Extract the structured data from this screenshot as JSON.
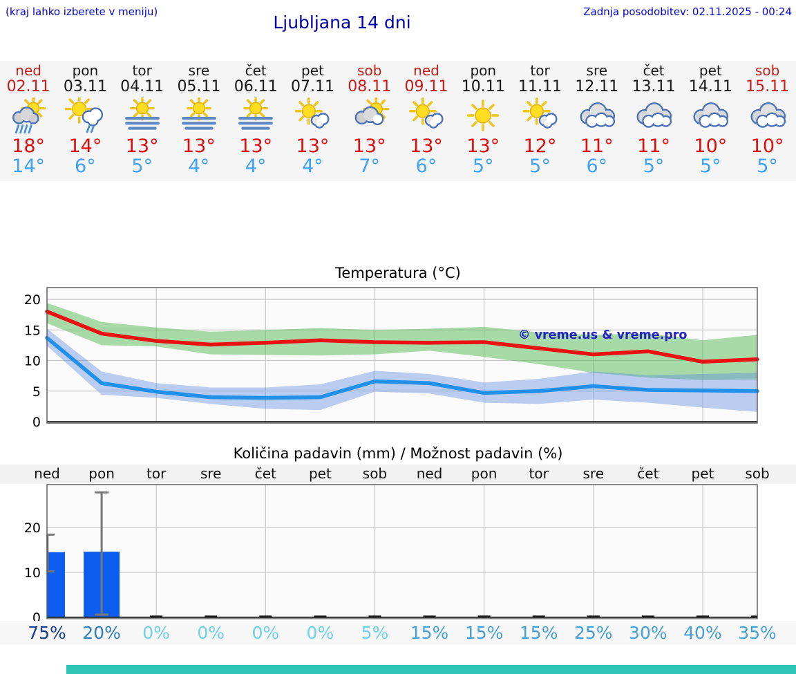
{
  "header": {
    "note": "(kraj lahko izberete v meniju)",
    "title": "Ljubljana 14 dni",
    "updated": "Zadnja posodobitev: 02.11.2025 - 00:24"
  },
  "colors": {
    "header_blue": "#0000dd",
    "title_blue": "#0000aa",
    "weekend_red": "#cc1a1a",
    "high_temp_red": "#e00d0d",
    "low_temp_blue": "#3fa2fc",
    "strip_gray": "#f5f5f5",
    "footer_teal": "#2ec4b6"
  },
  "forecast_days": [
    {
      "day": "ned",
      "date": "02.11",
      "weekend": true,
      "icon": "sun-rain",
      "high": "18°",
      "low": "14°"
    },
    {
      "day": "pon",
      "date": "03.11",
      "weekend": false,
      "icon": "sun-shower",
      "high": "14°",
      "low": "6°"
    },
    {
      "day": "tor",
      "date": "04.11",
      "weekend": false,
      "icon": "fog",
      "high": "13°",
      "low": "5°"
    },
    {
      "day": "sre",
      "date": "05.11",
      "weekend": false,
      "icon": "fog",
      "high": "13°",
      "low": "4°"
    },
    {
      "day": "čet",
      "date": "06.11",
      "weekend": false,
      "icon": "fog",
      "high": "13°",
      "low": "4°"
    },
    {
      "day": "pet",
      "date": "07.11",
      "weekend": false,
      "icon": "sun-cloud",
      "high": "13°",
      "low": "4°"
    },
    {
      "day": "sob",
      "date": "08.11",
      "weekend": true,
      "icon": "cloud-sun",
      "high": "13°",
      "low": "7°"
    },
    {
      "day": "ned",
      "date": "09.11",
      "weekend": true,
      "icon": "sun-cloud",
      "high": "13°",
      "low": "6°"
    },
    {
      "day": "pon",
      "date": "10.11",
      "weekend": false,
      "icon": "sun",
      "high": "13°",
      "low": "5°"
    },
    {
      "day": "tor",
      "date": "11.11",
      "weekend": false,
      "icon": "sun-cloud",
      "high": "12°",
      "low": "5°"
    },
    {
      "day": "sre",
      "date": "12.11",
      "weekend": false,
      "icon": "cloudy",
      "high": "11°",
      "low": "6°"
    },
    {
      "day": "čet",
      "date": "13.11",
      "weekend": false,
      "icon": "cloudy",
      "high": "11°",
      "low": "5°"
    },
    {
      "day": "pet",
      "date": "14.11",
      "weekend": false,
      "icon": "cloudy",
      "high": "10°",
      "low": "5°"
    },
    {
      "day": "sob",
      "date": "15.11",
      "weekend": true,
      "icon": "cloudy",
      "high": "10°",
      "low": "5°"
    }
  ],
  "chart_data": [
    {
      "type": "line",
      "title": "Temperatura (°C)",
      "categories": [
        "02.11",
        "03.11",
        "04.11",
        "05.11",
        "06.11",
        "07.11",
        "08.11",
        "09.11",
        "10.11",
        "11.11",
        "12.11",
        "13.11",
        "14.11",
        "15.11"
      ],
      "series": [
        {
          "name": "max temperatura",
          "color": "#e81212",
          "values": [
            18,
            14.4,
            13.2,
            12.6,
            12.9,
            13.3,
            13,
            12.9,
            13,
            12,
            11,
            11.5,
            9.8,
            10.2
          ]
        },
        {
          "name": "min temperatura",
          "color": "#2090e8",
          "values": [
            13.7,
            6.3,
            4.9,
            4,
            3.9,
            4,
            6.6,
            6.3,
            4.7,
            5,
            5.8,
            5.2,
            5.1,
            5
          ]
        }
      ],
      "bands": [
        {
          "name": "max razpon",
          "color": "rgba(85,185,85,0.5)",
          "upper": [
            19.4,
            16.3,
            15.4,
            14.7,
            15,
            15.3,
            15,
            15.2,
            15.5,
            14.6,
            14.2,
            14.4,
            13.3,
            14.2
          ],
          "lower": [
            16.1,
            12.5,
            12.3,
            11,
            10.9,
            10.8,
            11,
            11.6,
            10.6,
            9.4,
            8,
            7.2,
            6.8,
            6.9
          ]
        },
        {
          "name": "min razpon",
          "color": "rgba(95,140,225,0.42)",
          "upper": [
            15.2,
            8.2,
            6.3,
            5.6,
            5.6,
            6.1,
            8.3,
            7.8,
            6.4,
            7,
            8.2,
            7.6,
            7.8,
            8
          ],
          "lower": [
            12.4,
            4.4,
            3.9,
            2.9,
            2.1,
            1.9,
            4.9,
            4.6,
            3.1,
            2.9,
            3.6,
            3.1,
            2.3,
            1.6
          ]
        }
      ],
      "ylim": [
        0,
        21.8
      ],
      "yticks": [
        0,
        5,
        10,
        15,
        20
      ],
      "grid": true,
      "legend_position": "none",
      "annotation": "© vreme.us & vreme.pro",
      "annotation_color": "#2424c0"
    },
    {
      "type": "bar",
      "title": "Količina padavin (mm) / Možnost padavin (%)",
      "categories": [
        "ned",
        "pon",
        "tor",
        "sre",
        "čet",
        "pet",
        "sob",
        "ned",
        "pon",
        "tor",
        "sre",
        "čet",
        "pet",
        "sob"
      ],
      "values": [
        14.5,
        14.6,
        0,
        0,
        0,
        0,
        0,
        0,
        0,
        0,
        0,
        0,
        0,
        0
      ],
      "error_bars": [
        {
          "index": 0,
          "low": 10.2,
          "high": 18.4
        },
        {
          "index": 1,
          "low": 0.6,
          "high": 27.8
        }
      ],
      "probabilities": [
        "75%",
        "20%",
        "0%",
        "0%",
        "0%",
        "0%",
        "5%",
        "15%",
        "15%",
        "15%",
        "25%",
        "30%",
        "40%",
        "35%"
      ],
      "probability_colors": [
        "#173f8e",
        "#2e7fc0",
        "#6ed2e6",
        "#6ed2e6",
        "#6ed2e6",
        "#6ed2e6",
        "#6ed2e6",
        "#45a0d8",
        "#45a0d8",
        "#45a0d8",
        "#45a0d8",
        "#45a0d8",
        "#45a0d8",
        "#45a0d8"
      ],
      "ylim": [
        0,
        30
      ],
      "yticks": [
        0,
        10,
        20
      ],
      "grid": true,
      "bar_color": "#0d5ef0",
      "error_bar_color": "#777777",
      "xlabel": "",
      "ylabel": ""
    }
  ]
}
